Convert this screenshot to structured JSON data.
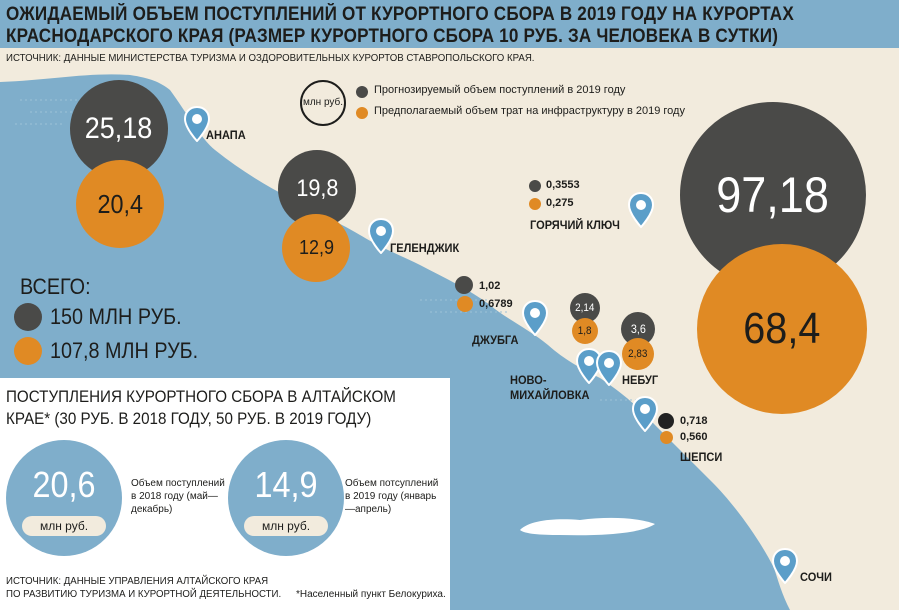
{
  "header": {
    "title": "ОЖИДАЕМЫЙ ОБЪЕМ ПОСТУПЛЕНИЙ ОТ КУРОРТНОГО СБОРА В 2019 ГОДУ НА КУРОРТАХ КРАСНОДАРСКОГО КРАЯ (РАЗМЕР КУРОРТНОГО СБОРА 10 РУБ. ЗА ЧЕЛОВЕКА В СУТКИ)",
    "source": "ИСТОЧНИК: ДАННЫЕ МИНИСТЕРСТВА ТУРИЗМА И ОЗДОРОВИТЕЛЬНЫХ КУРОРТОВ СТАВРОПОЛЬСКОГО КРАЯ."
  },
  "legend": {
    "unit": "млн руб.",
    "forecast": "Прогнозируемый объем поступлений в 2019 году",
    "planned": "Предполагаемый объем трат на инфраструктуру в 2019 году"
  },
  "colors": {
    "forecast": "#4a4a48",
    "planned": "#e08a24",
    "sea": "#7faecb",
    "land": "#f2ebdd",
    "pin": "#5b9ec9"
  },
  "totals": {
    "label": "ВСЕГО:",
    "forecast": "150 МЛН РУБ.",
    "planned": "107,8 МЛН РУБ."
  },
  "chart_data": {
    "type": "bubble",
    "title": "Ожидаемый объем поступлений от курортного сбора в 2019 году на курортах Краснодарского края",
    "unit": "млн руб.",
    "series": [
      {
        "name": "Прогнозируемый объем поступлений в 2019 году",
        "color": "#4a4a48"
      },
      {
        "name": "Предполагаемый объем трат на инфраструктуру в 2019 году",
        "color": "#e08a24"
      }
    ],
    "points": [
      {
        "city": "АНАПА",
        "forecast": 25.18,
        "planned": 20.4,
        "forecast_label": "25,18",
        "planned_label": "20,4"
      },
      {
        "city": "ГЕЛЕНДЖИК",
        "forecast": 19.8,
        "planned": 12.9,
        "forecast_label": "19,8",
        "planned_label": "12,9"
      },
      {
        "city": "ГОРЯЧИЙ КЛЮЧ",
        "forecast": 0.3553,
        "planned": 0.275,
        "forecast_label": "0,3553",
        "planned_label": "0,275"
      },
      {
        "city": "ДЖУБГА",
        "forecast": 1.02,
        "planned": 0.6789,
        "forecast_label": "1,02",
        "planned_label": "0,6789"
      },
      {
        "city": "НОВО-МИХАЙЛОВКА",
        "forecast": 2.14,
        "planned": 1.8,
        "forecast_label": "2,14",
        "planned_label": "1,8"
      },
      {
        "city": "НЕБУГ",
        "forecast": 3.6,
        "planned": 2.83,
        "forecast_label": "3,6",
        "planned_label": "2,83"
      },
      {
        "city": "ШЕПСИ",
        "forecast": 0.718,
        "planned": 0.56,
        "forecast_label": "0,718",
        "planned_label": "0,560"
      },
      {
        "city": "СОЧИ",
        "forecast": 97.18,
        "planned": 68.4,
        "forecast_label": "97,18",
        "planned_label": "68,4"
      }
    ],
    "cities": {
      "anapa": "АНАПА",
      "gelendzhik": "ГЕЛЕНДЖИК",
      "goryachy": "ГОРЯЧИЙ КЛЮЧ",
      "dzhubga": "ДЖУБГА",
      "novo_1": "НОВО-",
      "novo_2": "МИХАЙЛОВКА",
      "nebug": "НЕБУГ",
      "shepsi": "ШЕПСИ",
      "sochi": "СОЧИ"
    }
  },
  "altai": {
    "title": "ПОСТУПЛЕНИЯ КУРОРТНОГО СБОРА В АЛТАЙСКОМ КРАЕ* (30 РУБ. В 2018 ГОДУ, 50 РУБ. В 2019 ГОДУ)",
    "items": [
      {
        "value": "20,6",
        "unit": "млн руб.",
        "desc": "Объем поступлений в 2018 году (май—декабрь)"
      },
      {
        "value": "14,9",
        "unit": "млн руб.",
        "desc": "Объем потсуплений в 2019 году (январь—апрель)"
      }
    ],
    "source": "ИСТОЧНИК: ДАННЫЕ УПРАВЛЕНИЯ АЛТАЙСКОГО КРАЯ ПО РАЗВИТИЮ ТУРИЗМА И КУРОРТНОЙ ДЕЯТЕЛЬНОСТИ.",
    "footnote": "*Населенный пункт Белокуриха."
  }
}
